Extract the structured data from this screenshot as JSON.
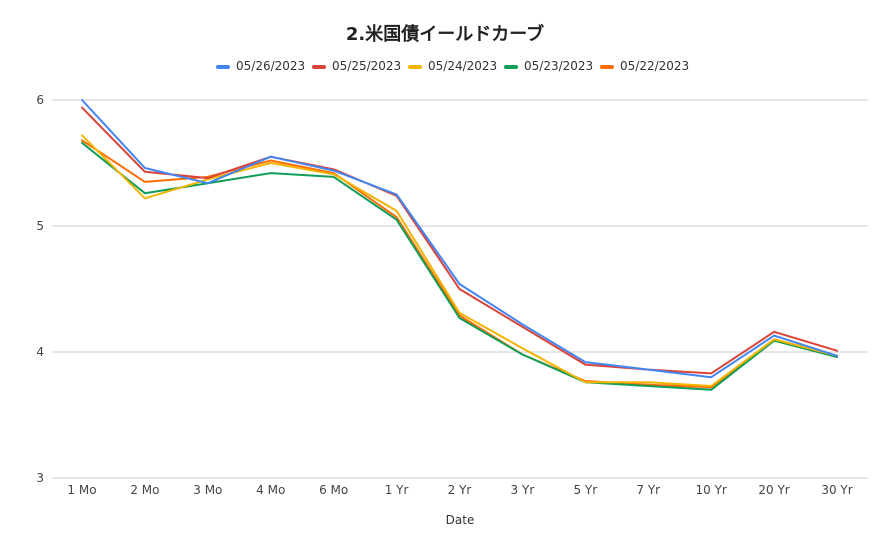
{
  "chart_data": {
    "type": "line",
    "title": "2.米国債イールドカーブ",
    "xlabel": "Date",
    "ylabel": "",
    "ylim": [
      3,
      6
    ],
    "yticks": [
      3,
      4,
      5,
      6
    ],
    "grid": true,
    "legend_position": "top",
    "categories": [
      "1 Mo",
      "2 Mo",
      "3 Mo",
      "4 Mo",
      "6 Mo",
      "1 Yr",
      "2 Yr",
      "3 Yr",
      "5 Yr",
      "7 Yr",
      "10 Yr",
      "20 Yr",
      "30 Yr"
    ],
    "series": [
      {
        "name": "05/26/2023",
        "color": "#4285f4",
        "values": [
          6.0,
          5.46,
          5.34,
          5.55,
          5.44,
          5.25,
          4.54,
          4.22,
          3.92,
          3.86,
          3.8,
          4.13,
          3.97
        ]
      },
      {
        "name": "05/25/2023",
        "color": "#db4437",
        "values": [
          5.94,
          5.43,
          5.38,
          5.55,
          5.45,
          5.24,
          4.5,
          4.2,
          3.9,
          3.86,
          3.83,
          4.16,
          4.01
        ]
      },
      {
        "name": "05/24/2023",
        "color": "#f4b400",
        "values": [
          5.72,
          5.22,
          5.37,
          5.5,
          5.41,
          5.12,
          4.31,
          4.03,
          3.76,
          3.76,
          3.73,
          4.1,
          3.97
        ]
      },
      {
        "name": "05/23/2023",
        "color": "#0f9d58",
        "values": [
          5.66,
          5.26,
          5.34,
          5.42,
          5.39,
          5.05,
          4.27,
          3.98,
          3.76,
          3.73,
          3.7,
          4.09,
          3.96
        ]
      },
      {
        "name": "05/22/2023",
        "color": "#ff6d00",
        "values": [
          5.68,
          5.35,
          5.39,
          5.52,
          5.42,
          5.07,
          4.29,
          3.98,
          3.77,
          3.74,
          3.72,
          4.1,
          3.97
        ]
      }
    ]
  }
}
